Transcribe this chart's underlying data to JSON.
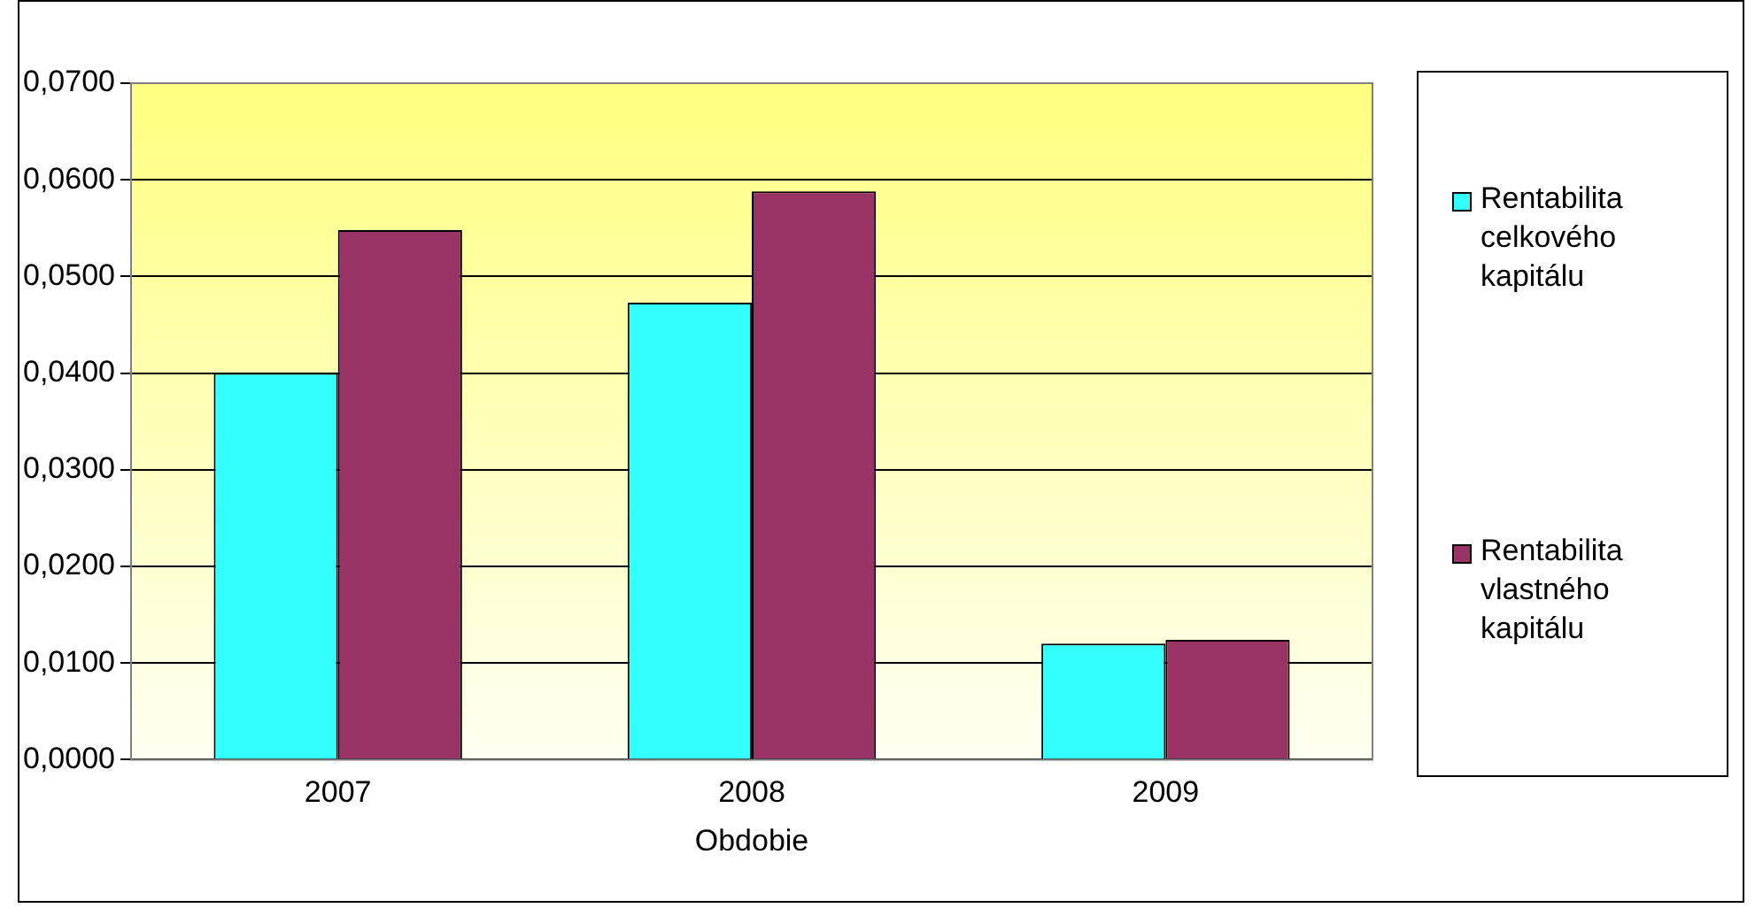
{
  "chart_data": {
    "type": "bar",
    "xlabel": "Obdobie",
    "categories": [
      "2007",
      "2008",
      "2009"
    ],
    "series": [
      {
        "name": "Rentabilita celkového kapitálu",
        "color": "#33ffff",
        "values": [
          0.04,
          0.0473,
          0.012
        ]
      },
      {
        "name": "Rentabilita vlastného kapitálu",
        "color": "#993366",
        "values": [
          0.0548,
          0.0588,
          0.0124
        ]
      }
    ],
    "ylim": [
      0,
      0.07
    ],
    "yticks": [
      {
        "value": 0,
        "label": "0,0000"
      },
      {
        "value": 0.01,
        "label": "0,0100"
      },
      {
        "value": 0.02,
        "label": "0,0200"
      },
      {
        "value": 0.03,
        "label": "0,0300"
      },
      {
        "value": 0.04,
        "label": "0,0400"
      },
      {
        "value": 0.05,
        "label": "0,0500"
      },
      {
        "value": 0.06,
        "label": "0,0600"
      },
      {
        "value": 0.07,
        "label": "0,0700"
      }
    ],
    "grid": "y",
    "legend": "right"
  }
}
